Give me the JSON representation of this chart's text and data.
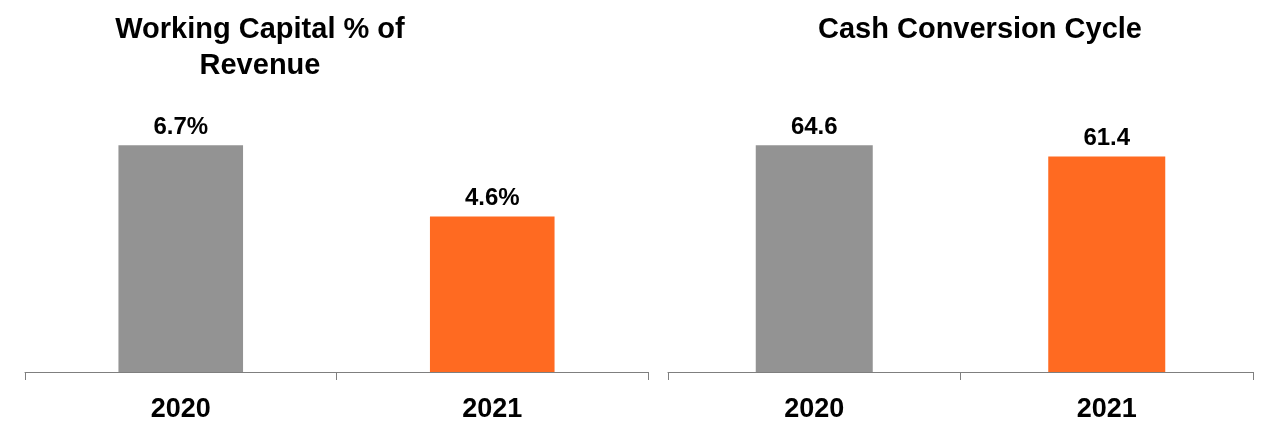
{
  "chart_data": [
    {
      "type": "bar",
      "title": "Working Capital % of Revenue",
      "categories": [
        "2020",
        "2021"
      ],
      "values": [
        6.7,
        4.6
      ],
      "colors": [
        "#939393",
        "#ff6a21"
      ],
      "value_labels": [
        "6.7%",
        "4.6%"
      ],
      "tick_labels": "x",
      "grid": false
    },
    {
      "type": "bar",
      "title": "Cash Conversion Cycle",
      "categories": [
        "2020",
        "2021"
      ],
      "values": [
        64.6,
        61.4
      ],
      "colors": [
        "#939393",
        "#ff6a21"
      ],
      "data_labels": true,
      "tick_labels": "x",
      "grid": false
    }
  ]
}
